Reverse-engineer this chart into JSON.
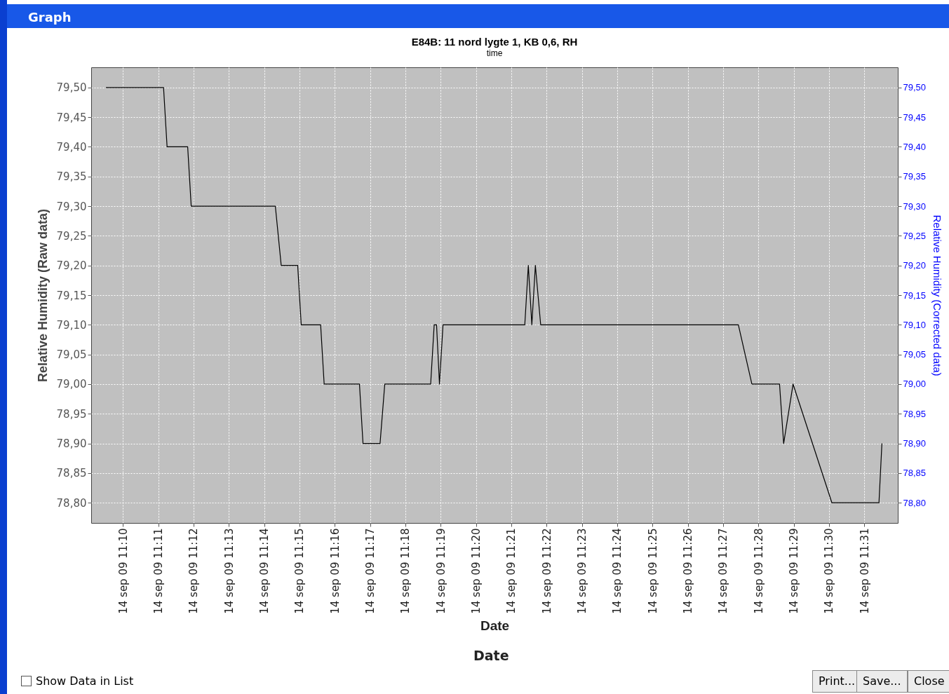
{
  "chart_data": {
    "type": "line",
    "title": "E84B: 11 nord lygte 1, KB 0,6, RH",
    "subtitle": "time",
    "xlabel": "Date",
    "ylabel": "Relative Humidity (Raw data)",
    "y2label": "Relative Humidity (Corrected data)",
    "annotations": [
      "Date",
      "Graph",
      "Show Data in List",
      "Print...",
      "Save...",
      "Close"
    ],
    "xlim": [
      "--09-14T11:09:06",
      "--09-14T11:31:57"
    ],
    "xticks": [
      {
        "value": "--09-14T11:10",
        "label": "14 sep 09 11:10"
      },
      {
        "value": "--09-14T11:11",
        "label": "14 sep 09 11:11"
      },
      {
        "value": "--09-14T11:12",
        "label": "14 sep 09 11:12"
      },
      {
        "value": "--09-14T11:13",
        "label": "14 sep 09 11:13"
      },
      {
        "value": "--09-14T11:14",
        "label": "14 sep 09 11:14"
      },
      {
        "value": "--09-14T11:15",
        "label": "14 sep 09 11:15"
      },
      {
        "value": "--09-14T11:16",
        "label": "14 sep 09 11:16"
      },
      {
        "value": "--09-14T11:17",
        "label": "14 sep 09 11:17"
      },
      {
        "value": "--09-14T11:18",
        "label": "14 sep 09 11:18"
      },
      {
        "value": "--09-14T11:19",
        "label": "14 sep 09 11:19"
      },
      {
        "value": "--09-14T11:20",
        "label": "14 sep 09 11:20"
      },
      {
        "value": "--09-14T11:21",
        "label": "14 sep 09 11:21"
      },
      {
        "value": "--09-14T11:22",
        "label": "14 sep 09 11:22"
      },
      {
        "value": "--09-14T11:23",
        "label": "14 sep 09 11:23"
      },
      {
        "value": "--09-14T11:24",
        "label": "14 sep 09 11:24"
      },
      {
        "value": "--09-14T11:25",
        "label": "14 sep 09 11:25"
      },
      {
        "value": "--09-14T11:26",
        "label": "14 sep 09 11:26"
      },
      {
        "value": "--09-14T11:27",
        "label": "14 sep 09 11:27"
      },
      {
        "value": "--09-14T11:28",
        "label": "14 sep 09 11:28"
      },
      {
        "value": "--09-14T11:29",
        "label": "14 sep 09 11:29"
      },
      {
        "value": "--09-14T11:30",
        "label": "14 sep 09 11:30"
      },
      {
        "value": "--09-14T11:31",
        "label": "14 sep 09 11:31"
      }
    ],
    "ylim": [
      78.766,
      79.534
    ],
    "yticks": [
      {
        "value": 78.8,
        "label": "78,80"
      },
      {
        "value": 78.85,
        "label": "78,85"
      },
      {
        "value": 78.9,
        "label": "78,90"
      },
      {
        "value": 78.95,
        "label": "78,95"
      },
      {
        "value": 79.0,
        "label": "79,00"
      },
      {
        "value": 79.05,
        "label": "79,05"
      },
      {
        "value": 79.1,
        "label": "79,10"
      },
      {
        "value": 79.15,
        "label": "79,15"
      },
      {
        "value": 79.2,
        "label": "79,20"
      },
      {
        "value": 79.25,
        "label": "79,25"
      },
      {
        "value": 79.3,
        "label": "79,30"
      },
      {
        "value": 79.35,
        "label": "79,35"
      },
      {
        "value": 79.4,
        "label": "79,40"
      },
      {
        "value": 79.45,
        "label": "79,45"
      },
      {
        "value": 79.5,
        "label": "79,50"
      }
    ],
    "y2lim": [
      78.766,
      79.534
    ],
    "y2ticks": [
      {
        "value": 78.8,
        "label": "78,80"
      },
      {
        "value": 78.85,
        "label": "78,85"
      },
      {
        "value": 78.9,
        "label": "78,90"
      },
      {
        "value": 78.95,
        "label": "78,95"
      },
      {
        "value": 79.0,
        "label": "79,00"
      },
      {
        "value": 79.05,
        "label": "79,05"
      },
      {
        "value": 79.1,
        "label": "79,10"
      },
      {
        "value": 79.15,
        "label": "79,15"
      },
      {
        "value": 79.2,
        "label": "79,20"
      },
      {
        "value": 79.25,
        "label": "79,25"
      },
      {
        "value": 79.3,
        "label": "79,30"
      },
      {
        "value": 79.35,
        "label": "79,35"
      },
      {
        "value": 79.4,
        "label": "79,40"
      },
      {
        "value": 79.45,
        "label": "79,45"
      },
      {
        "value": 79.5,
        "label": "79,50"
      }
    ],
    "grid": true,
    "line_style": "solid",
    "series": [
      {
        "color": "#000000",
        "x": [
          "--09-14T11:09:31",
          "--09-14T11:11:09",
          "--09-14T11:11:15",
          "--09-14T11:11:50",
          "--09-14T11:11:56",
          "--09-14T11:14:19",
          "--09-14T11:14:29",
          "--09-14T11:14:57",
          "--09-14T11:15:03",
          "--09-14T11:15:36",
          "--09-14T11:15:42",
          "--09-14T11:16:42",
          "--09-14T11:16:48",
          "--09-14T11:17:17",
          "--09-14T11:17:25",
          "--09-14T11:18:43",
          "--09-14T11:18:49",
          "--09-14T11:18:53",
          "--09-14T11:18:58",
          "--09-14T11:19:04",
          "--09-14T11:21:23",
          "--09-14T11:21:29",
          "--09-14T11:21:35",
          "--09-14T11:21:41",
          "--09-14T11:21:50",
          "--09-14T11:27:26",
          "--09-14T11:27:49",
          "--09-14T11:28:36",
          "--09-14T11:28:43",
          "--09-14T11:28:59",
          "--09-14T11:30:05",
          "--09-14T11:31:25",
          "--09-14T11:31:30"
        ],
        "values": [
          79.5,
          79.5,
          79.4,
          79.4,
          79.3,
          79.3,
          79.2,
          79.2,
          79.1,
          79.1,
          79.0,
          79.0,
          78.9,
          78.9,
          79.0,
          79.0,
          79.1,
          79.1,
          79.0,
          79.1,
          79.1,
          79.2,
          79.1,
          79.2,
          79.1,
          79.1,
          79.0,
          79.0,
          78.9,
          79.0,
          78.8,
          78.8,
          78.9
        ]
      }
    ]
  }
}
